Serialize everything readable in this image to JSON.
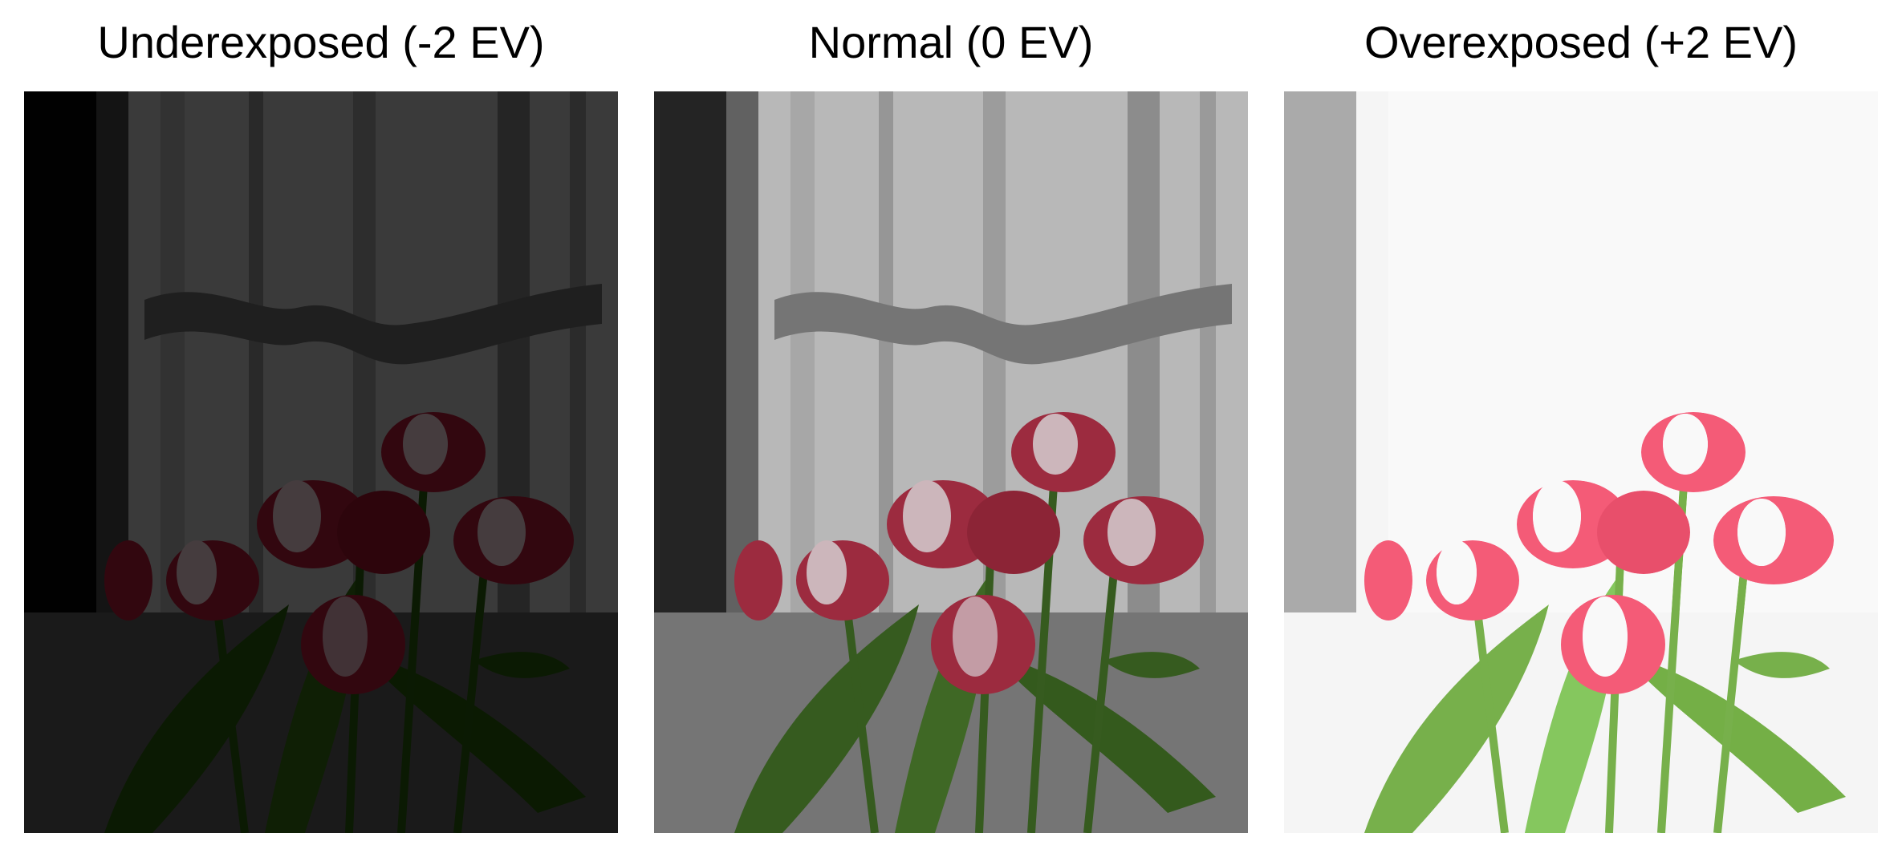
{
  "panels": [
    {
      "title": "Underexposed (-2 EV)",
      "exposure_ev": -2
    },
    {
      "title": "Normal (0 EV)",
      "exposure_ev": 0
    },
    {
      "title": "Overexposed (+2 EV)",
      "exposure_ev": 2
    }
  ],
  "colors": {
    "background": "#ffffff",
    "title_text": "#000000",
    "curtain": "#d8d8d8",
    "window_bar": "#7a7a7a",
    "tulip_red": "#b8324a",
    "tulip_light": "#f0d6dc",
    "leaf_green": "#3f6b24",
    "dark_frame": "#1b1b1b"
  }
}
